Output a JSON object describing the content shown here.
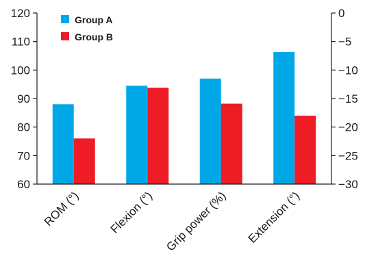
{
  "chart_data": {
    "type": "bar",
    "categories": [
      "ROM (°)",
      "Flexion (°)",
      "Grip power (%)",
      "Extension (°)"
    ],
    "series": [
      {
        "name": "Group A",
        "values": [
          88,
          94.5,
          97,
          106.3
        ],
        "color": "#00a8e8"
      },
      {
        "name": "Group B",
        "values": [
          76,
          93.8,
          88.2,
          84
        ],
        "color": "#ee1c25"
      }
    ],
    "ylim": [
      60,
      120
    ],
    "y_ticks": [
      "60",
      "70",
      "80",
      "90",
      "100",
      "110",
      "120"
    ],
    "y2lim": [
      -30,
      0
    ],
    "y2_ticks": [
      "0",
      "−5",
      "−10",
      "−15",
      "−20",
      "−25",
      "−30"
    ],
    "legend_position": "top-left",
    "grid": false,
    "title": "",
    "xlabel": "",
    "ylabel": ""
  }
}
